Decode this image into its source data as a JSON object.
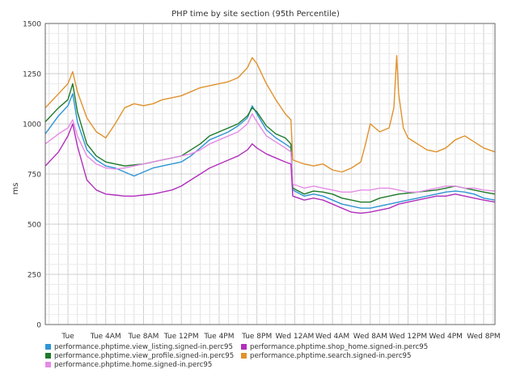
{
  "chart_data": {
    "type": "line",
    "title": "PHP time by site section (95th Percentile)",
    "xlabel": "",
    "ylabel": "ms",
    "ylim": [
      0,
      1500
    ],
    "y_ticks": [
      0,
      250,
      500,
      750,
      1000,
      1250,
      1500
    ],
    "x_tick_labels": [
      "Tue",
      "Tue 4AM",
      "Tue 8AM",
      "Tue 12PM",
      "Tue 4PM",
      "Tue 8PM",
      "Wed 12AM",
      "Wed 4AM",
      "Wed 8AM",
      "Wed 12PM",
      "Wed 4PM",
      "Wed 8PM"
    ],
    "x_hours_range": [
      -2.4,
      45.2
    ],
    "grid": true,
    "legend_position": "bottom",
    "series": [
      {
        "name": "performance.phptime.view_listing.signed-in.perc95",
        "color": "#2e95d6",
        "points": [
          [
            -2.4,
            950
          ],
          [
            -1,
            1040
          ],
          [
            0,
            1090
          ],
          [
            0.5,
            1150
          ],
          [
            1,
            1010
          ],
          [
            2,
            870
          ],
          [
            3,
            820
          ],
          [
            4,
            790
          ],
          [
            5,
            780
          ],
          [
            6,
            760
          ],
          [
            7,
            740
          ],
          [
            8,
            760
          ],
          [
            9,
            780
          ],
          [
            10,
            790
          ],
          [
            11,
            800
          ],
          [
            12,
            810
          ],
          [
            13,
            840
          ],
          [
            14,
            880
          ],
          [
            15,
            920
          ],
          [
            16,
            940
          ],
          [
            17,
            960
          ],
          [
            18,
            990
          ],
          [
            19,
            1030
          ],
          [
            19.5,
            1090
          ],
          [
            20,
            1050
          ],
          [
            21,
            970
          ],
          [
            22,
            930
          ],
          [
            23,
            900
          ],
          [
            23.6,
            880
          ],
          [
            23.8,
            670
          ],
          [
            25,
            640
          ],
          [
            26,
            650
          ],
          [
            27,
            640
          ],
          [
            28,
            620
          ],
          [
            29,
            600
          ],
          [
            30,
            590
          ],
          [
            31,
            580
          ],
          [
            32,
            580
          ],
          [
            33,
            590
          ],
          [
            34,
            600
          ],
          [
            35,
            610
          ],
          [
            36,
            620
          ],
          [
            37,
            630
          ],
          [
            38,
            640
          ],
          [
            39,
            650
          ],
          [
            40,
            660
          ],
          [
            41,
            665
          ],
          [
            42,
            660
          ],
          [
            43,
            650
          ],
          [
            44,
            630
          ],
          [
            45.2,
            620
          ]
        ]
      },
      {
        "name": "performance.phptime.view_profile.signed-in.perc95",
        "color": "#1d7a2a",
        "points": [
          [
            -2.4,
            1010
          ],
          [
            -1,
            1080
          ],
          [
            0,
            1120
          ],
          [
            0.5,
            1200
          ],
          [
            1,
            1060
          ],
          [
            2,
            900
          ],
          [
            3,
            840
          ],
          [
            4,
            810
          ],
          [
            5,
            800
          ],
          [
            6,
            790
          ],
          [
            7,
            795
          ],
          [
            8,
            800
          ],
          [
            9,
            810
          ],
          [
            10,
            820
          ],
          [
            11,
            830
          ],
          [
            12,
            840
          ],
          [
            13,
            870
          ],
          [
            14,
            900
          ],
          [
            15,
            940
          ],
          [
            16,
            960
          ],
          [
            17,
            980
          ],
          [
            18,
            1000
          ],
          [
            19,
            1040
          ],
          [
            19.5,
            1080
          ],
          [
            20,
            1060
          ],
          [
            21,
            990
          ],
          [
            22,
            950
          ],
          [
            23,
            930
          ],
          [
            23.6,
            900
          ],
          [
            23.8,
            680
          ],
          [
            25,
            650
          ],
          [
            26,
            665
          ],
          [
            27,
            660
          ],
          [
            28,
            650
          ],
          [
            29,
            630
          ],
          [
            30,
            620
          ],
          [
            31,
            610
          ],
          [
            32,
            610
          ],
          [
            33,
            630
          ],
          [
            34,
            640
          ],
          [
            35,
            650
          ],
          [
            36,
            655
          ],
          [
            37,
            660
          ],
          [
            38,
            665
          ],
          [
            39,
            670
          ],
          [
            40,
            680
          ],
          [
            41,
            690
          ],
          [
            42,
            680
          ],
          [
            43,
            670
          ],
          [
            44,
            660
          ],
          [
            45.2,
            650
          ]
        ]
      },
      {
        "name": "performance.phptime.home.signed-in.perc95",
        "color": "#e58be6",
        "points": [
          [
            -2.4,
            900
          ],
          [
            -1,
            950
          ],
          [
            0,
            980
          ],
          [
            0.5,
            1020
          ],
          [
            1,
            940
          ],
          [
            2,
            840
          ],
          [
            3,
            800
          ],
          [
            4,
            780
          ],
          [
            5,
            775
          ],
          [
            6,
            780
          ],
          [
            7,
            790
          ],
          [
            8,
            800
          ],
          [
            9,
            810
          ],
          [
            10,
            820
          ],
          [
            11,
            830
          ],
          [
            12,
            840
          ],
          [
            13,
            850
          ],
          [
            14,
            870
          ],
          [
            15,
            900
          ],
          [
            16,
            920
          ],
          [
            17,
            940
          ],
          [
            18,
            960
          ],
          [
            19,
            1000
          ],
          [
            19.5,
            1050
          ],
          [
            20,
            1010
          ],
          [
            21,
            940
          ],
          [
            22,
            910
          ],
          [
            23,
            880
          ],
          [
            23.6,
            860
          ],
          [
            23.8,
            700
          ],
          [
            25,
            680
          ],
          [
            26,
            690
          ],
          [
            27,
            680
          ],
          [
            28,
            670
          ],
          [
            29,
            660
          ],
          [
            30,
            660
          ],
          [
            31,
            670
          ],
          [
            32,
            670
          ],
          [
            33,
            680
          ],
          [
            34,
            680
          ],
          [
            35,
            670
          ],
          [
            36,
            660
          ],
          [
            37,
            660
          ],
          [
            38,
            670
          ],
          [
            39,
            680
          ],
          [
            40,
            690
          ],
          [
            41,
            690
          ],
          [
            42,
            680
          ],
          [
            43,
            680
          ],
          [
            44,
            670
          ],
          [
            45.2,
            665
          ]
        ]
      },
      {
        "name": "performance.phptime.shop_home.signed-in.perc95",
        "color": "#b12fbd",
        "points": [
          [
            -2.4,
            790
          ],
          [
            -1,
            860
          ],
          [
            0,
            940
          ],
          [
            0.5,
            1000
          ],
          [
            1,
            890
          ],
          [
            2,
            720
          ],
          [
            3,
            670
          ],
          [
            4,
            650
          ],
          [
            5,
            645
          ],
          [
            6,
            640
          ],
          [
            7,
            640
          ],
          [
            8,
            645
          ],
          [
            9,
            650
          ],
          [
            10,
            660
          ],
          [
            11,
            670
          ],
          [
            12,
            690
          ],
          [
            13,
            720
          ],
          [
            14,
            750
          ],
          [
            15,
            780
          ],
          [
            16,
            800
          ],
          [
            17,
            820
          ],
          [
            18,
            840
          ],
          [
            19,
            870
          ],
          [
            19.5,
            900
          ],
          [
            20,
            880
          ],
          [
            21,
            850
          ],
          [
            22,
            830
          ],
          [
            23,
            810
          ],
          [
            23.6,
            800
          ],
          [
            23.8,
            640
          ],
          [
            25,
            620
          ],
          [
            26,
            630
          ],
          [
            27,
            620
          ],
          [
            28,
            600
          ],
          [
            29,
            580
          ],
          [
            30,
            560
          ],
          [
            31,
            555
          ],
          [
            32,
            560
          ],
          [
            33,
            570
          ],
          [
            34,
            580
          ],
          [
            35,
            600
          ],
          [
            36,
            610
          ],
          [
            37,
            620
          ],
          [
            38,
            630
          ],
          [
            39,
            640
          ],
          [
            40,
            640
          ],
          [
            41,
            650
          ],
          [
            42,
            640
          ],
          [
            43,
            630
          ],
          [
            44,
            620
          ],
          [
            45.2,
            610
          ]
        ]
      },
      {
        "name": "performance.phptime.search.signed-in.perc95",
        "color": "#e0922d",
        "points": [
          [
            -2.4,
            1080
          ],
          [
            -1,
            1150
          ],
          [
            0,
            1200
          ],
          [
            0.5,
            1260
          ],
          [
            1,
            1160
          ],
          [
            2,
            1030
          ],
          [
            3,
            960
          ],
          [
            4,
            930
          ],
          [
            5,
            1000
          ],
          [
            6,
            1080
          ],
          [
            7,
            1100
          ],
          [
            8,
            1090
          ],
          [
            9,
            1100
          ],
          [
            10,
            1120
          ],
          [
            11,
            1130
          ],
          [
            12,
            1140
          ],
          [
            13,
            1160
          ],
          [
            14,
            1180
          ],
          [
            15,
            1190
          ],
          [
            16,
            1200
          ],
          [
            17,
            1210
          ],
          [
            18,
            1230
          ],
          [
            19,
            1280
          ],
          [
            19.5,
            1330
          ],
          [
            20,
            1300
          ],
          [
            21,
            1200
          ],
          [
            22,
            1120
          ],
          [
            23,
            1050
          ],
          [
            23.6,
            1020
          ],
          [
            23.8,
            820
          ],
          [
            25,
            800
          ],
          [
            26,
            790
          ],
          [
            27,
            800
          ],
          [
            28,
            770
          ],
          [
            29,
            760
          ],
          [
            30,
            780
          ],
          [
            31,
            810
          ],
          [
            31.5,
            900
          ],
          [
            32,
            1000
          ],
          [
            33,
            960
          ],
          [
            34,
            980
          ],
          [
            34.5,
            1080
          ],
          [
            34.8,
            1340
          ],
          [
            35,
            1150
          ],
          [
            35.5,
            980
          ],
          [
            36,
            930
          ],
          [
            37,
            900
          ],
          [
            38,
            870
          ],
          [
            39,
            860
          ],
          [
            40,
            880
          ],
          [
            41,
            920
          ],
          [
            42,
            940
          ],
          [
            43,
            910
          ],
          [
            44,
            880
          ],
          [
            45.2,
            860
          ]
        ]
      }
    ]
  }
}
